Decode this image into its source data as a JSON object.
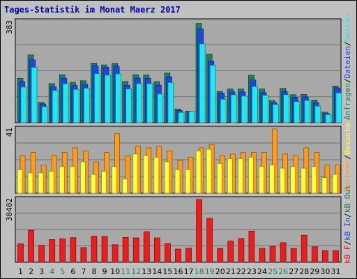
{
  "title": "Tages-Statistik im Monat Maerz 2017",
  "colors": {
    "bg": "#c0c0c0",
    "panel": "#a8a8a8",
    "grid": "#707070",
    "anfragen": "#1a8060",
    "dateien": "#1e46e6",
    "seiten": "#22e6f0",
    "rechner": "#ff9a1a",
    "besuche": "#ffff40",
    "kb": "#ee1c1c",
    "weekend": "#1a8060",
    "weekday": "#000000"
  },
  "legend": {
    "top": [
      {
        "text": "Anfragen",
        "color": "#1a8060"
      },
      {
        "text": "/",
        "color": "#000000"
      },
      {
        "text": "Dateien",
        "color": "#1e46e6"
      },
      {
        "text": "/",
        "color": "#000000"
      },
      {
        "text": "Seiten",
        "color": "#22e6f0"
      }
    ],
    "middle": [
      {
        "text": "Rechner",
        "color": "#ff9a1a"
      },
      {
        "text": "/",
        "color": "#000000"
      },
      {
        "text": "Besuche",
        "color": "#ffff40"
      }
    ],
    "bottom": [
      {
        "text": "kB F",
        "color": "#ee1c1c"
      },
      {
        "text": "/",
        "color": "#000000"
      },
      {
        "text": "kB In",
        "color": "#1e46e6"
      },
      {
        "text": "/",
        "color": "#000000"
      },
      {
        "text": "kB Out",
        "color": "#1a8060"
      }
    ]
  },
  "chart_data": [
    {
      "type": "bar",
      "panel": "requests",
      "ymax_label": "383",
      "ylim": [
        0,
        383
      ],
      "categories": [
        "1",
        "2",
        "3",
        "4",
        "5",
        "6",
        "7",
        "8",
        "9",
        "10",
        "11",
        "12",
        "13",
        "14",
        "15",
        "16",
        "17",
        "18",
        "19",
        "20",
        "21",
        "22",
        "23",
        "24",
        "25",
        "26",
        "27",
        "28",
        "29",
        "30",
        "31"
      ],
      "weekend": [
        4,
        5,
        11,
        12,
        18,
        19,
        25,
        26
      ],
      "series": [
        {
          "name": "Anfragen",
          "values": [
            168,
            257,
            77,
            148,
            182,
            153,
            159,
            226,
            219,
            225,
            156,
            182,
            181,
            156,
            188,
            52,
            44,
            376,
            260,
            119,
            128,
            128,
            180,
            128,
            84,
            130,
            106,
            107,
            86,
            40,
            139
          ]
        },
        {
          "name": "Dateien",
          "values": [
            156,
            238,
            71,
            136,
            168,
            141,
            146,
            216,
            210,
            214,
            142,
            169,
            168,
            142,
            174,
            46,
            39,
            355,
            233,
            112,
            117,
            117,
            162,
            114,
            76,
            118,
            96,
            98,
            75,
            35,
            132
          ]
        },
        {
          "name": "Seiten",
          "values": [
            135,
            210,
            61,
            122,
            148,
            126,
            131,
            186,
            180,
            185,
            128,
            148,
            148,
            109,
            152,
            39,
            43,
            299,
            218,
            89,
            106,
            101,
            137,
            104,
            69,
            106,
            80,
            84,
            63,
            31,
            113
          ]
        }
      ]
    },
    {
      "type": "bar",
      "panel": "visits",
      "ymax_label": "41",
      "ylim": [
        0,
        41
      ],
      "categories": [
        "1",
        "2",
        "3",
        "4",
        "5",
        "6",
        "7",
        "8",
        "9",
        "10",
        "11",
        "12",
        "13",
        "14",
        "15",
        "16",
        "17",
        "18",
        "19",
        "20",
        "21",
        "22",
        "23",
        "24",
        "25",
        "26",
        "27",
        "28",
        "29",
        "30",
        "31"
      ],
      "series": [
        {
          "name": "Rechner",
          "values": [
            24,
            26,
            18,
            24,
            26,
            29,
            27,
            20,
            26,
            38,
            24,
            30,
            29,
            30,
            27,
            21,
            23,
            29,
            31,
            24,
            25,
            26,
            26,
            26,
            41,
            25,
            24,
            29,
            26,
            18,
            18
          ]
        },
        {
          "name": "Besuche",
          "values": [
            15,
            13,
            13,
            14,
            17,
            17,
            20,
            12,
            14,
            17,
            9,
            25,
            24,
            23,
            20,
            15,
            15,
            27,
            28,
            19,
            22,
            22,
            23,
            17,
            18,
            16,
            17,
            16,
            17,
            10,
            12
          ]
        }
      ]
    },
    {
      "type": "bar",
      "panel": "traffic",
      "ymax_label": "30402",
      "ylim": [
        0,
        30402
      ],
      "categories": [
        "1",
        "2",
        "3",
        "4",
        "5",
        "6",
        "7",
        "8",
        "9",
        "10",
        "11",
        "12",
        "13",
        "14",
        "15",
        "16",
        "17",
        "18",
        "19",
        "20",
        "21",
        "22",
        "23",
        "24",
        "25",
        "26",
        "27",
        "28",
        "29",
        "30",
        "31"
      ],
      "series": [
        {
          "name": "kB F",
          "values": [
            8900,
            15500,
            8200,
            11000,
            11400,
            11900,
            7100,
            12600,
            12500,
            8500,
            12000,
            11800,
            14800,
            11800,
            9100,
            6400,
            6800,
            30402,
            21300,
            6700,
            10300,
            11500,
            15100,
            6700,
            7800,
            9500,
            6700,
            13100,
            7500,
            5600,
            5600
          ]
        }
      ]
    }
  ]
}
